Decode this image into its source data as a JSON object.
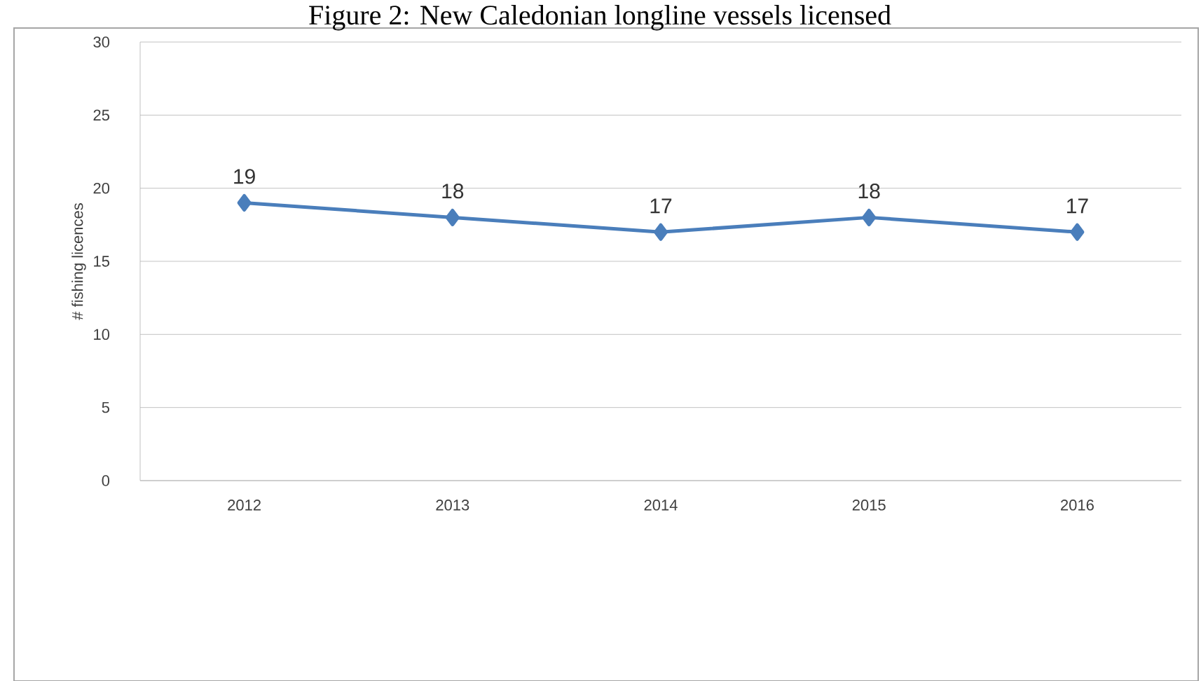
{
  "chart_data": {
    "type": "line",
    "title": "Figure 2: New Caledonian longline vessels licensed",
    "ylabel": "# fishing licences",
    "categories": [
      "2012",
      "2013",
      "2014",
      "2015",
      "2016"
    ],
    "series": [
      {
        "color": "#4a7ebb",
        "values": [
          19,
          18,
          17,
          18,
          17
        ]
      }
    ],
    "ylim": [
      0,
      30
    ],
    "yticks": [
      0,
      5,
      10,
      15,
      20,
      25,
      30
    ],
    "grid": "y",
    "marker": "diamond",
    "line_style": "solid",
    "data_labels": true
  }
}
